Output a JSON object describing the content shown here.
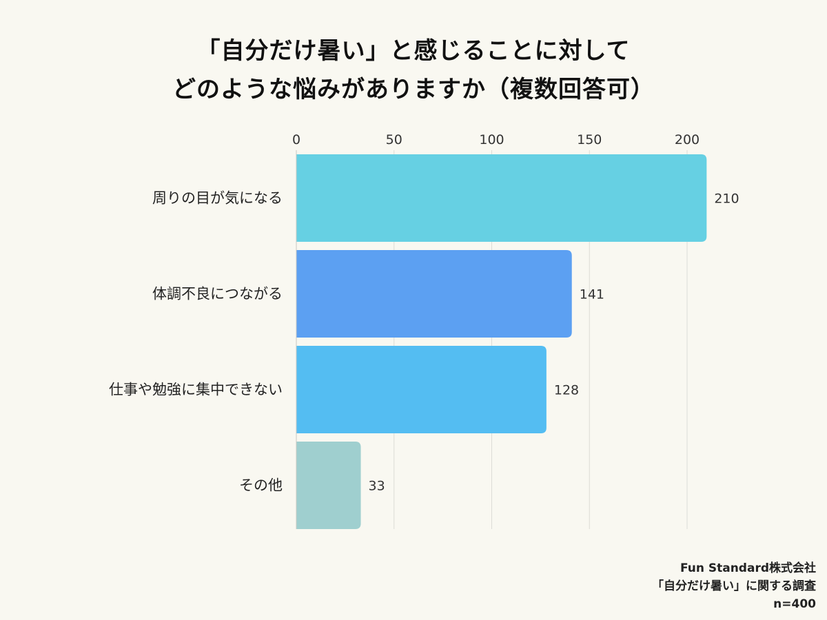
{
  "title_line1": "「自分だけ暑い」と感じることに対して",
  "title_line2": "どのような悩みがありますか（複数回答可）",
  "footer": {
    "company": "Fun Standard株式会社",
    "survey": "「自分だけ暑い」に関する調査",
    "sample": "n=400"
  },
  "chart_data": {
    "type": "bar",
    "orientation": "horizontal",
    "categories": [
      "周りの目が気になる",
      "体調不良につながる",
      "仕事や勉強に集中できない",
      "その他"
    ],
    "values": [
      210,
      141,
      128,
      33
    ],
    "colors": [
      "#66d0e3",
      "#5ca0f2",
      "#54bdf2",
      "#9fcfcf"
    ],
    "xlim": [
      0,
      210
    ],
    "xticks": [
      0,
      50,
      100,
      150,
      200
    ],
    "xaxis_position": "top",
    "grid": true,
    "data_labels": true
  }
}
